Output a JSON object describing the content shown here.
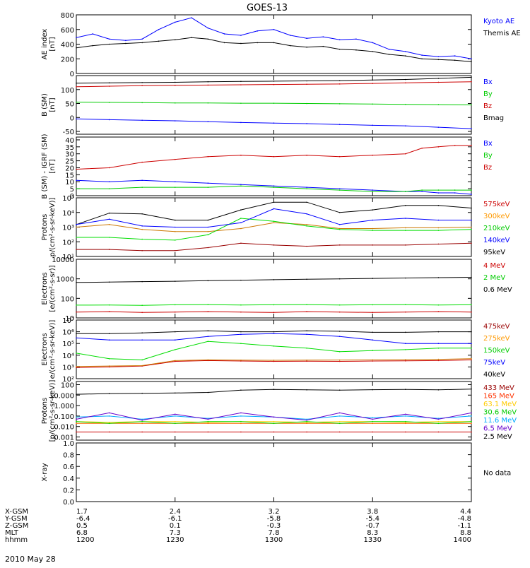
{
  "title": "GOES-13",
  "date_label": "2010 May 28",
  "ephemeris": {
    "rows": [
      {
        "label": "X-GSM",
        "values": [
          "1.7",
          "2.4",
          "3.2",
          "3.8",
          "4.4"
        ]
      },
      {
        "label": "Y-GSM",
        "values": [
          "-6.4",
          "-6.1",
          "-5.8",
          "-5.4",
          "-4.8"
        ]
      },
      {
        "label": "Z-GSM",
        "values": [
          "0.5",
          "0.1",
          "-0.3",
          "-0.7",
          "-1.1"
        ]
      },
      {
        "label": "MLT",
        "values": [
          "6.8",
          "7.3",
          "7.8",
          "8.3",
          "8.8"
        ]
      },
      {
        "label": "hhmm",
        "values": [
          "1200",
          "1230",
          "1300",
          "1330",
          "1400"
        ]
      }
    ]
  },
  "chart_data": [
    {
      "type": "line",
      "ylabel": [
        "AE index",
        "[nT]"
      ],
      "ylim": [
        0,
        800
      ],
      "yticks": [
        "0",
        "200",
        "400",
        "600",
        "800"
      ],
      "yscale": "linear",
      "x": [
        0,
        5,
        10,
        15,
        20,
        25,
        30,
        35,
        40,
        45,
        50,
        55,
        60,
        65,
        70,
        75,
        80,
        85,
        90,
        95,
        100,
        105,
        110,
        115,
        120
      ],
      "series": [
        {
          "name": "Kyoto AE",
          "color": "#0000ff",
          "values": [
            490,
            540,
            470,
            450,
            470,
            600,
            700,
            760,
            620,
            540,
            520,
            580,
            600,
            520,
            480,
            500,
            460,
            470,
            420,
            330,
            300,
            250,
            230,
            240,
            200
          ]
        },
        {
          "name": "Themis AE",
          "color": "#000000",
          "values": [
            350,
            380,
            400,
            410,
            420,
            440,
            460,
            490,
            470,
            420,
            410,
            420,
            420,
            380,
            360,
            370,
            330,
            320,
            300,
            260,
            240,
            200,
            190,
            180,
            160
          ]
        }
      ],
      "labels": [
        {
          "text": "Kyoto AE",
          "color": "#0000ff"
        },
        {
          "text": "Themis AE",
          "color": "#000000"
        }
      ]
    },
    {
      "type": "line",
      "ylabel": [
        "B (SM)",
        "[nT]"
      ],
      "ylim": [
        -60,
        150
      ],
      "yticks": [
        "-50",
        "0",
        "50",
        "100"
      ],
      "yscale": "linear",
      "x": [
        0,
        10,
        20,
        30,
        40,
        50,
        60,
        70,
        80,
        90,
        100,
        110,
        120
      ],
      "series": [
        {
          "name": "Bx",
          "color": "#0000ff",
          "values": [
            -5,
            -8,
            -10,
            -12,
            -15,
            -18,
            -20,
            -22,
            -25,
            -28,
            -30,
            -35,
            -40
          ]
        },
        {
          "name": "By",
          "color": "#00cc00",
          "values": [
            55,
            54,
            53,
            52,
            52,
            51,
            51,
            50,
            49,
            48,
            47,
            46,
            45
          ]
        },
        {
          "name": "Bz",
          "color": "#cc0000",
          "values": [
            110,
            112,
            114,
            115,
            116,
            117,
            118,
            119,
            120,
            122,
            124,
            126,
            128
          ]
        },
        {
          "name": "Bmag",
          "color": "#000000",
          "values": [
            123,
            124,
            125,
            126,
            128,
            129,
            130,
            131,
            132,
            134,
            136,
            140,
            144
          ]
        }
      ],
      "labels": [
        {
          "text": "Bx",
          "color": "#0000ff"
        },
        {
          "text": "By",
          "color": "#00cc00"
        },
        {
          "text": "Bz",
          "color": "#cc0000"
        },
        {
          "text": "Bmag",
          "color": "#000000"
        }
      ]
    },
    {
      "type": "line",
      "ylabel": [
        "B (SM) - IGRF (SM)",
        "[nT]"
      ],
      "ylim": [
        0,
        42
      ],
      "yticks": [
        "0",
        "5",
        "10",
        "15",
        "20",
        "25",
        "30",
        "35",
        "40"
      ],
      "yscale": "linear",
      "x": [
        0,
        10,
        20,
        30,
        40,
        50,
        60,
        70,
        80,
        90,
        100,
        105,
        110,
        115,
        120
      ],
      "series": [
        {
          "name": "Bx",
          "color": "#0000ff",
          "values": [
            11,
            10,
            11,
            10,
            9,
            8,
            7,
            6,
            5,
            4,
            3,
            3,
            2,
            2,
            1
          ]
        },
        {
          "name": "By",
          "color": "#00cc00",
          "values": [
            5,
            5,
            6,
            6,
            6,
            7,
            6,
            5,
            4,
            3,
            3,
            4,
            4,
            4,
            4
          ]
        },
        {
          "name": "Bz",
          "color": "#cc0000",
          "values": [
            19,
            20,
            24,
            26,
            28,
            29,
            28,
            29,
            28,
            29,
            30,
            34,
            35,
            36,
            36
          ]
        }
      ],
      "labels": [
        {
          "text": "Bx",
          "color": "#0000ff"
        },
        {
          "text": "By",
          "color": "#00cc00"
        },
        {
          "text": "Bz",
          "color": "#cc0000"
        }
      ]
    },
    {
      "type": "line",
      "ylabel": [
        "Protons",
        "p/(cm²-s-sr-keV)]"
      ],
      "ylim": [
        10,
        100000
      ],
      "yticks": [
        "10¹",
        "10²",
        "10³",
        "10⁴",
        "10⁵"
      ],
      "yscale": "log",
      "x": [
        0,
        10,
        20,
        30,
        40,
        50,
        60,
        70,
        80,
        90,
        100,
        110,
        120
      ],
      "series": [
        {
          "name": "575keV",
          "color": "#000000",
          "values": [
            1500,
            9000,
            8000,
            3000,
            3000,
            15000,
            50000,
            50000,
            10000,
            15000,
            30000,
            30000,
            20000
          ]
        },
        {
          "name": "300keV",
          "color": "#cc7700",
          "values": [
            1000,
            1500,
            700,
            500,
            500,
            800,
            2000,
            1500,
            800,
            800,
            900,
            900,
            1000
          ]
        },
        {
          "name": "210keV",
          "color": "#00dd00",
          "values": [
            200,
            200,
            150,
            130,
            300,
            4000,
            2500,
            1200,
            700,
            600,
            600,
            600,
            700
          ]
        },
        {
          "name": "140keV",
          "color": "#0000ff",
          "values": [
            1500,
            3500,
            1200,
            1000,
            1000,
            2000,
            18000,
            8000,
            1500,
            3000,
            4000,
            3000,
            3000
          ]
        },
        {
          "name": "95keV",
          "color": "#990000",
          "values": [
            30,
            30,
            25,
            25,
            40,
            80,
            60,
            50,
            60,
            60,
            60,
            70,
            80
          ]
        }
      ],
      "labels": [
        {
          "text": "575keV",
          "color": "#cc0000"
        },
        {
          "text": "300keV",
          "color": "#ff9900"
        },
        {
          "text": "210keV",
          "color": "#00cc00"
        },
        {
          "text": "140keV",
          "color": "#0000ff"
        },
        {
          "text": "95keV",
          "color": "#000000"
        }
      ]
    },
    {
      "type": "line",
      "ylabel": [
        "Electrons",
        "[e/(cm²-s-sr)]"
      ],
      "ylim": [
        10,
        10000
      ],
      "yticks": [
        "10",
        "100",
        "1000",
        "10000"
      ],
      "yscale": "log",
      "x": [
        0,
        10,
        20,
        30,
        40,
        50,
        60,
        70,
        80,
        90,
        100,
        110,
        120
      ],
      "series": [
        {
          "name": "0.6 MeV",
          "color": "#000000",
          "values": [
            650,
            680,
            720,
            750,
            800,
            850,
            900,
            950,
            1000,
            1050,
            1100,
            1150,
            1200
          ]
        },
        {
          "name": "2 MeV",
          "color": "#00dd00",
          "values": [
            45,
            46,
            44,
            47,
            48,
            46,
            47,
            48,
            46,
            47,
            48,
            46,
            47
          ]
        },
        {
          "name": "4 MeV",
          "color": "#cc0000",
          "values": [
            20,
            21,
            19,
            20,
            21,
            20,
            19,
            21,
            20,
            19,
            20,
            21,
            20
          ]
        }
      ],
      "labels": [
        {
          "text": "4 MeV",
          "color": "#cc0000"
        },
        {
          "text": "2 MeV",
          "color": "#00cc00"
        },
        {
          "text": "0.6 MeV",
          "color": "#000000"
        }
      ]
    },
    {
      "type": "line",
      "ylabel": [
        "Electrons",
        "e/(cm²-s-sr-keV)]"
      ],
      "ylim": [
        100,
        10000000
      ],
      "yticks": [
        "10²",
        "10³",
        "10⁴",
        "10⁵",
        "10⁶",
        "10⁷"
      ],
      "yscale": "log",
      "x": [
        0,
        10,
        20,
        30,
        40,
        50,
        60,
        70,
        80,
        90,
        100,
        110,
        120
      ],
      "series": [
        {
          "name": "475keV",
          "color": "#cc0000",
          "values": [
            900,
            1000,
            1200,
            3000,
            3500,
            3200,
            3000,
            3100,
            3000,
            3200,
            3300,
            3500,
            4000
          ]
        },
        {
          "name": "275keV",
          "color": "#cc7700",
          "values": [
            1100,
            1200,
            1300,
            3500,
            4000,
            3800,
            3700,
            3800,
            3900,
            4000,
            4200,
            4500,
            5000
          ]
        },
        {
          "name": "150keV",
          "color": "#00dd00",
          "values": [
            15000,
            5000,
            4000,
            30000,
            150000,
            100000,
            60000,
            40000,
            20000,
            25000,
            30000,
            40000,
            40000
          ]
        },
        {
          "name": "75keV",
          "color": "#0000ff",
          "values": [
            300000,
            200000,
            200000,
            200000,
            400000,
            600000,
            700000,
            600000,
            400000,
            200000,
            100000,
            100000,
            100000
          ]
        },
        {
          "name": "40keV",
          "color": "#000000",
          "values": [
            700000,
            700000,
            800000,
            1000000,
            1200000,
            1000000,
            1000000,
            1200000,
            1100000,
            900000,
            900000,
            1000000,
            1000000
          ]
        }
      ],
      "labels": [
        {
          "text": "475keV",
          "color": "#990000"
        },
        {
          "text": "275keV",
          "color": "#ff9900"
        },
        {
          "text": "150keV",
          "color": "#00cc00"
        },
        {
          "text": "75keV",
          "color": "#0000ff"
        },
        {
          "text": "40keV",
          "color": "#000000"
        }
      ]
    },
    {
      "type": "line",
      "ylabel": [
        "Protons",
        "[p/(cm²-s-sr-keV)]"
      ],
      "ylim": [
        0.0005,
        200
      ],
      "yticks": [
        "0.001",
        "0.010",
        "0.100",
        "1.000",
        "10.000",
        "100"
      ],
      "yscale": "log",
      "x": [
        0,
        10,
        20,
        30,
        40,
        50,
        60,
        70,
        80,
        90,
        100,
        110,
        120
      ],
      "series": [
        {
          "name": "433 MeV",
          "color": "#cc0000",
          "values": [
            0.003,
            0.003,
            0.003,
            0.003,
            0.003,
            0.003,
            0.003,
            0.003,
            0.003,
            0.003,
            0.003,
            0.003,
            0.003
          ]
        },
        {
          "name": "165 MeV",
          "color": "#ff6600",
          "values": [
            0.02,
            0.02,
            0.02,
            0.02,
            0.02,
            0.02,
            0.02,
            0.02,
            0.02,
            0.02,
            0.02,
            0.02,
            0.02
          ]
        },
        {
          "name": "63.1 MeV",
          "color": "#ffcc00",
          "values": [
            0.03,
            0.025,
            0.03,
            0.03,
            0.025,
            0.03,
            0.03,
            0.025,
            0.03,
            0.03,
            0.025,
            0.03,
            0.03
          ]
        },
        {
          "name": "30.6 MeV",
          "color": "#00dd00",
          "values": [
            0.03,
            0.02,
            0.03,
            0.02,
            0.03,
            0.03,
            0.02,
            0.03,
            0.02,
            0.03,
            0.03,
            0.02,
            0.03
          ]
        },
        {
          "name": "11.6 MeV",
          "color": "#00aaff",
          "values": [
            0.08,
            0.1,
            0.05,
            0.1,
            0.06,
            0.1,
            0.08,
            0.05,
            0.1,
            0.07,
            0.1,
            0.06,
            0.1
          ]
        },
        {
          "name": "6.5 MeV",
          "color": "#6600cc",
          "values": [
            0.05,
            0.2,
            0.04,
            0.15,
            0.05,
            0.2,
            0.08,
            0.04,
            0.2,
            0.05,
            0.15,
            0.05,
            0.2
          ]
        },
        {
          "name": "2.5 MeV",
          "color": "#000000",
          "values": [
            12,
            14,
            15,
            16,
            18,
            30,
            35,
            32,
            30,
            33,
            35,
            32,
            38
          ]
        }
      ],
      "labels": [
        {
          "text": "433 MeV",
          "color": "#990000"
        },
        {
          "text": "165 MeV",
          "color": "#ff3300"
        },
        {
          "text": "63.1 MeV",
          "color": "#ffcc00"
        },
        {
          "text": "30.6 MeV",
          "color": "#00cc00"
        },
        {
          "text": "11.6 MeV",
          "color": "#00aaff"
        },
        {
          "text": "6.5 MeV",
          "color": "#6600cc"
        },
        {
          "text": "2.5 MeV",
          "color": "#000000"
        }
      ]
    },
    {
      "type": "line",
      "ylabel": [
        "X-ray"
      ],
      "ylim": [
        0,
        1.0
      ],
      "yticks": [
        "0.0",
        "0.2",
        "0.4",
        "0.6",
        "0.8",
        "1.0"
      ],
      "yscale": "linear",
      "x": [],
      "series": [],
      "labels": [
        {
          "text": "No data",
          "color": "#000000"
        }
      ]
    }
  ]
}
